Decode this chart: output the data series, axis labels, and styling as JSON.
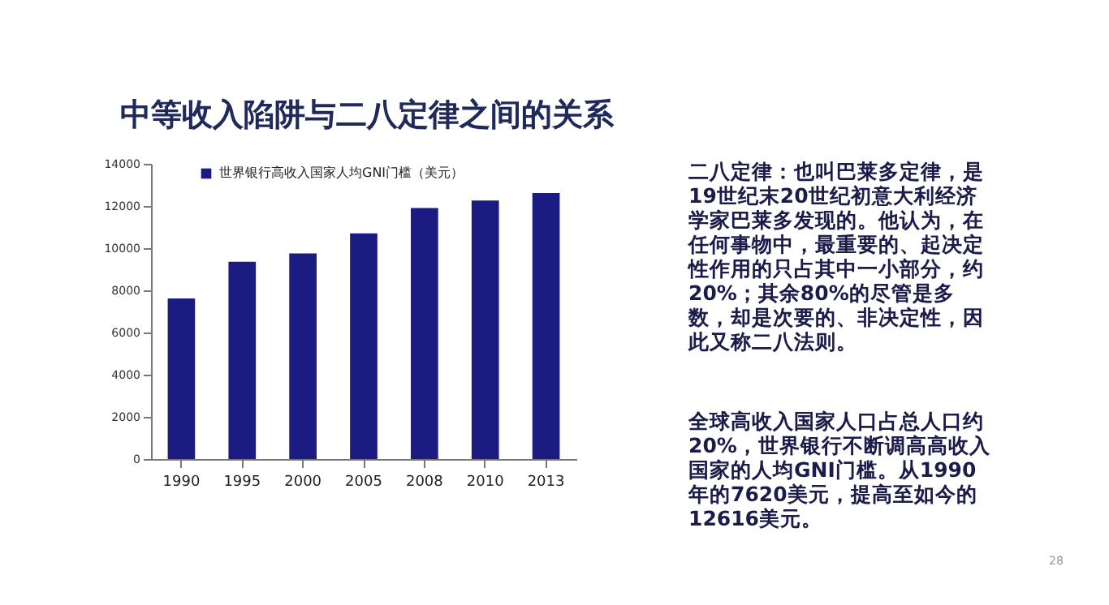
{
  "chart_data": {
    "type": "bar",
    "title": "中等收入陷阱与二八定律之间的关系",
    "categories": [
      "1990",
      "1995",
      "2000",
      "2005",
      "2008",
      "2010",
      "2013"
    ],
    "series": [
      {
        "name": "世界银行高收入国家人均GNI门槛（美元）",
        "color": "#1b1b82",
        "values": [
          7620,
          9360,
          9750,
          10700,
          11900,
          12260,
          12616
        ]
      }
    ],
    "ylim": [
      0,
      14000
    ],
    "yticks": [
      0,
      2000,
      4000,
      6000,
      8000,
      10000,
      12000,
      14000
    ],
    "grid": false,
    "legend": "top",
    "annotations": [
      "二八定律：也叫巴莱多定律，是19世纪末20世纪初意大利经济学家巴莱多发现的。他认为，在任何事物中，最重要的、起决定性作用的只占其中一小部分，约20%；其余80%的尽管是多数，却是次要的、非决定性，因此又称二八法则。",
      "全球高收入国家人口占总人口约20%，世界银行不断调高高收入国家的人均GNI门槛。从1990年的7620美元，提高至如今的12616美元。",
      "28"
    ]
  }
}
